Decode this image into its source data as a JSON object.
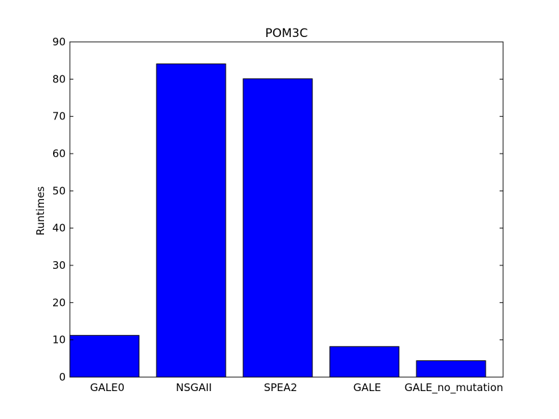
{
  "chart_data": {
    "type": "bar",
    "title": "POM3C",
    "xlabel": "",
    "ylabel": "Runtimes",
    "categories": [
      "GALE0",
      "NSGAII",
      "SPEA2",
      "GALE",
      "GALE_no_mutation"
    ],
    "values": [
      11.2,
      84.1,
      80.1,
      8.2,
      4.4
    ],
    "ylim": [
      0,
      90
    ],
    "yticks": [
      0,
      10,
      20,
      30,
      40,
      50,
      60,
      70,
      80,
      90
    ],
    "bar_color": "#0000ff",
    "edge_color": "#000000",
    "grid": false,
    "legend": "none"
  }
}
